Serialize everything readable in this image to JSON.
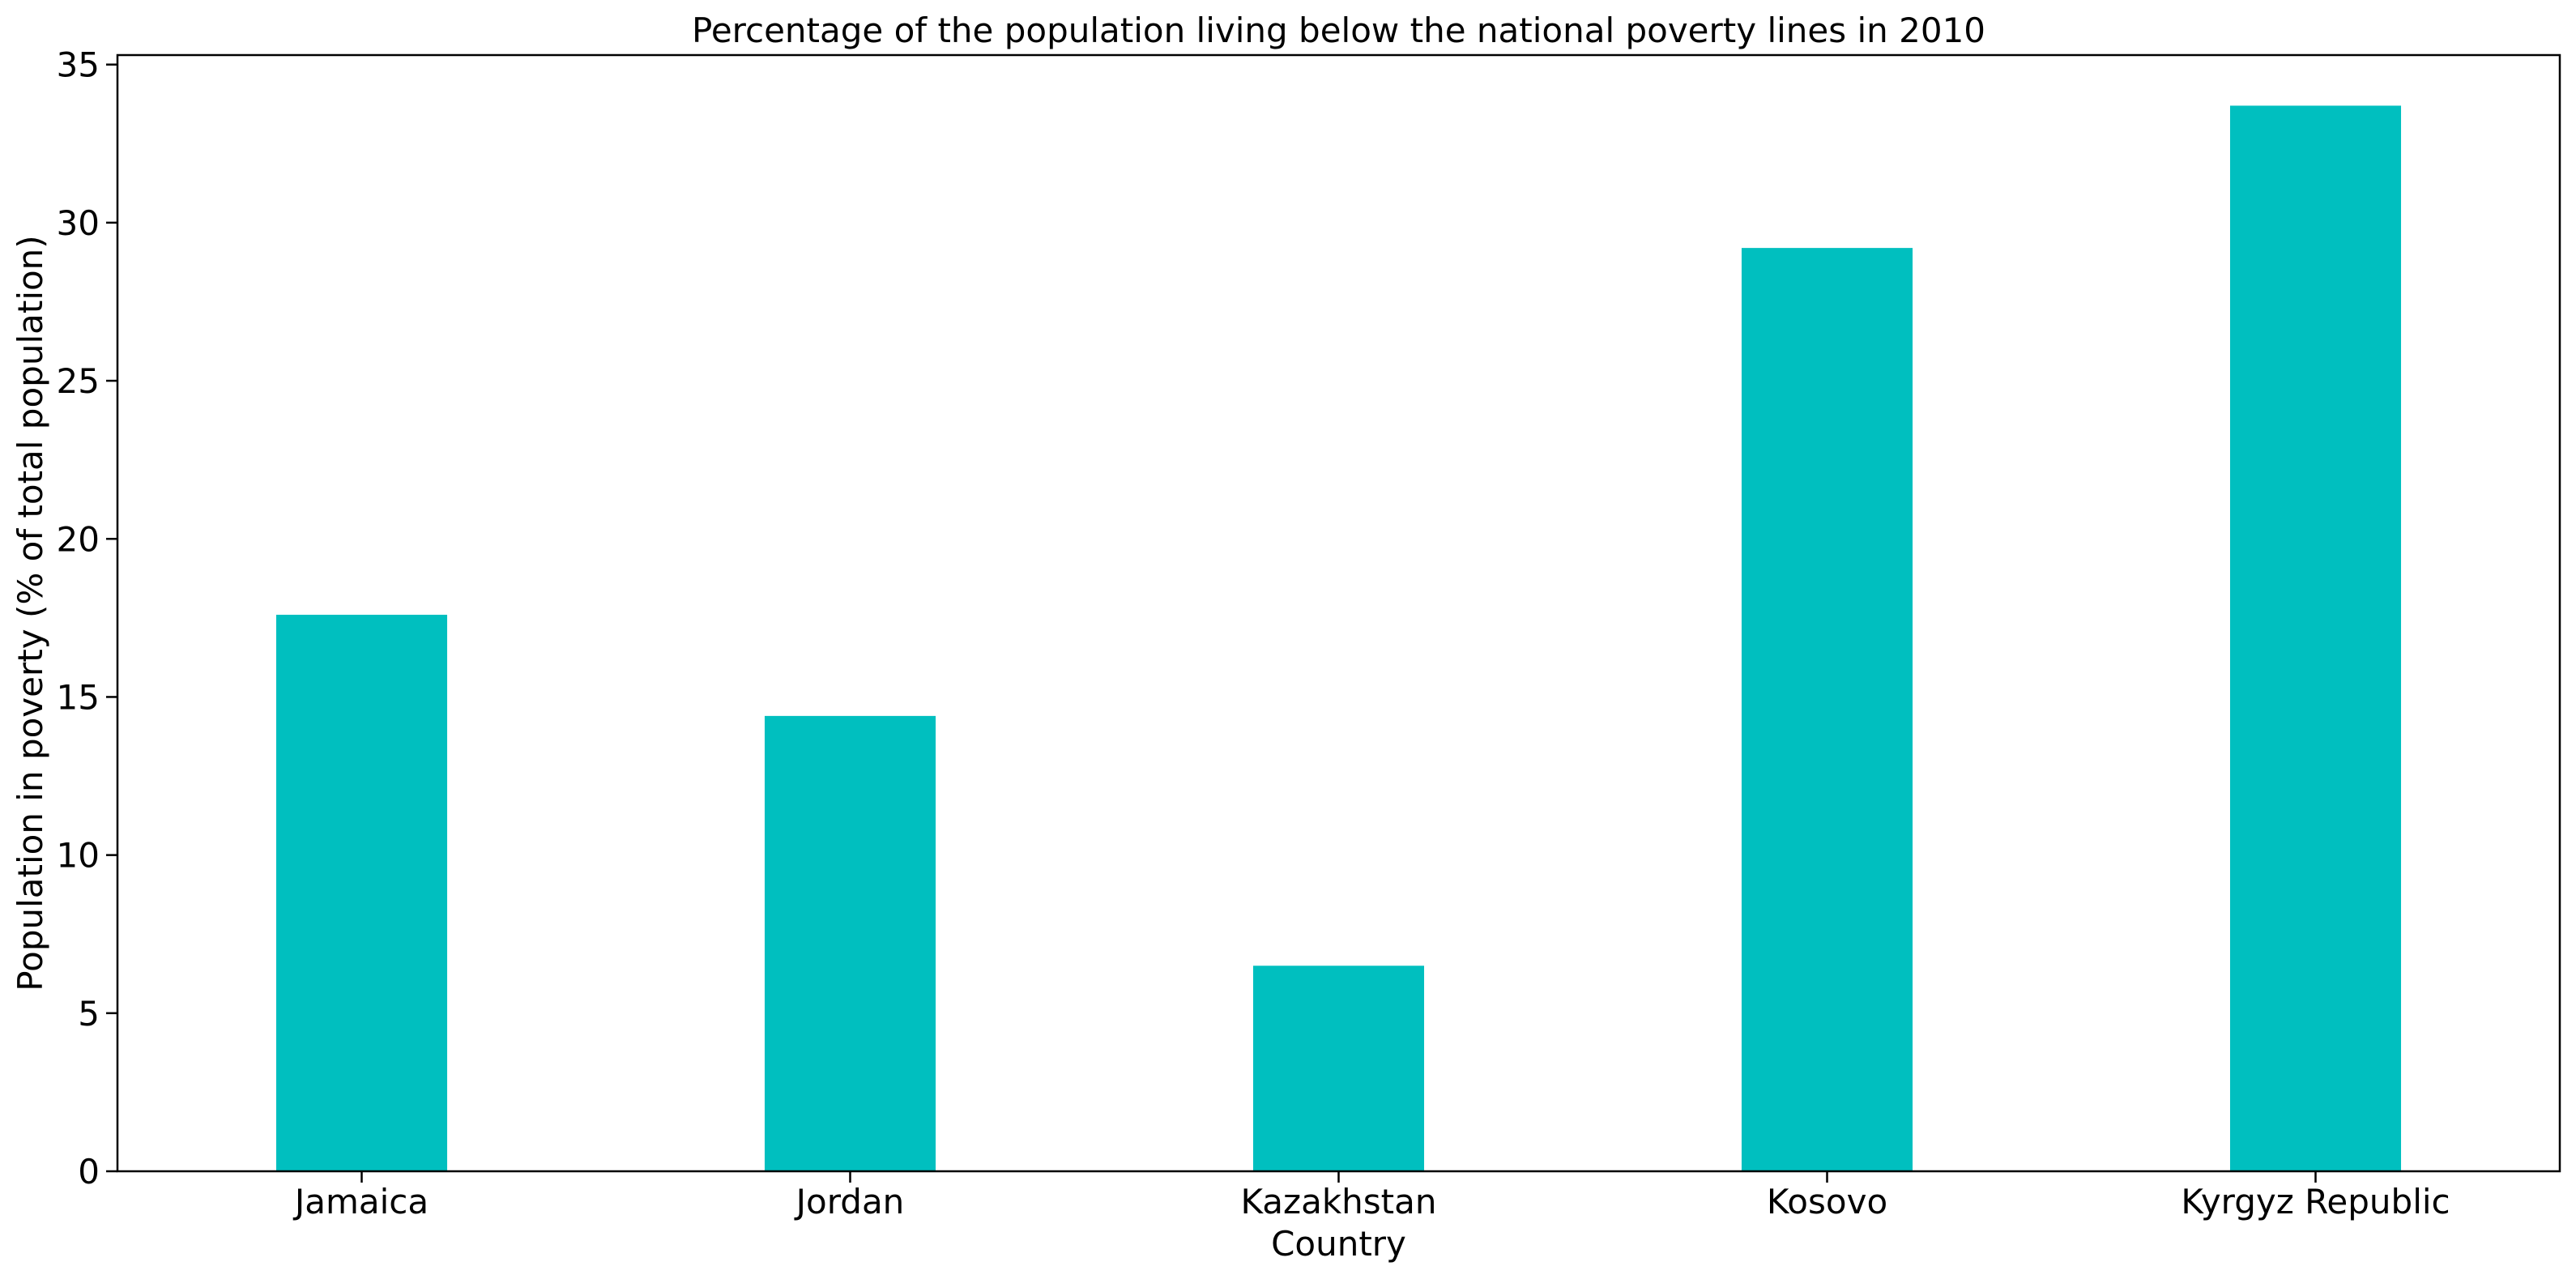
{
  "chart_data": {
    "type": "bar",
    "title": "Percentage of the population living below the national poverty lines in 2010",
    "xlabel": "Country",
    "ylabel": "Population in poverty (% of total population)",
    "categories": [
      "Jamaica",
      "Jordan",
      "Kazakhstan",
      "Kosovo",
      "Kyrgyz Republic"
    ],
    "values": [
      17.6,
      14.4,
      6.5,
      29.2,
      33.7
    ],
    "ylim": [
      0,
      35.3
    ],
    "yticks": [
      0,
      5,
      10,
      15,
      20,
      25,
      30,
      35
    ],
    "ytick_labels": [
      "0",
      "5",
      "10",
      "15",
      "20",
      "25",
      "30",
      "35"
    ],
    "bar_color": "#00bfbf",
    "grid": false,
    "legend": "none"
  }
}
